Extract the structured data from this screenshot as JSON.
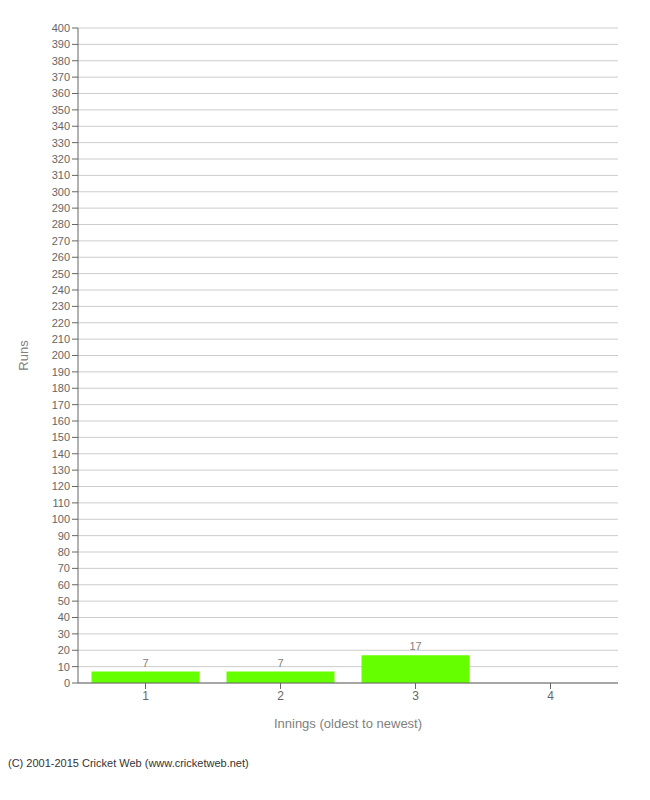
{
  "chart_data": {
    "type": "bar",
    "categories": [
      1,
      2,
      3,
      4
    ],
    "values": [
      7,
      7,
      17,
      0
    ],
    "color": "#66ff00",
    "xlabel": "Innings (oldest to newest)",
    "ylabel": "Runs",
    "ylim": [
      0,
      400
    ],
    "yticks": [
      0,
      10,
      20,
      30,
      40,
      50,
      60,
      70,
      80,
      90,
      100,
      110,
      120,
      130,
      140,
      150,
      160,
      170,
      180,
      190,
      200,
      210,
      220,
      230,
      240,
      250,
      260,
      270,
      280,
      290,
      300,
      310,
      320,
      330,
      340,
      350,
      360,
      370,
      380,
      390,
      400
    ],
    "grid": true,
    "data_labels": true,
    "annotations": [
      "(C) 2001-2015 Cricket Web (www.cricketweb.net)"
    ]
  }
}
